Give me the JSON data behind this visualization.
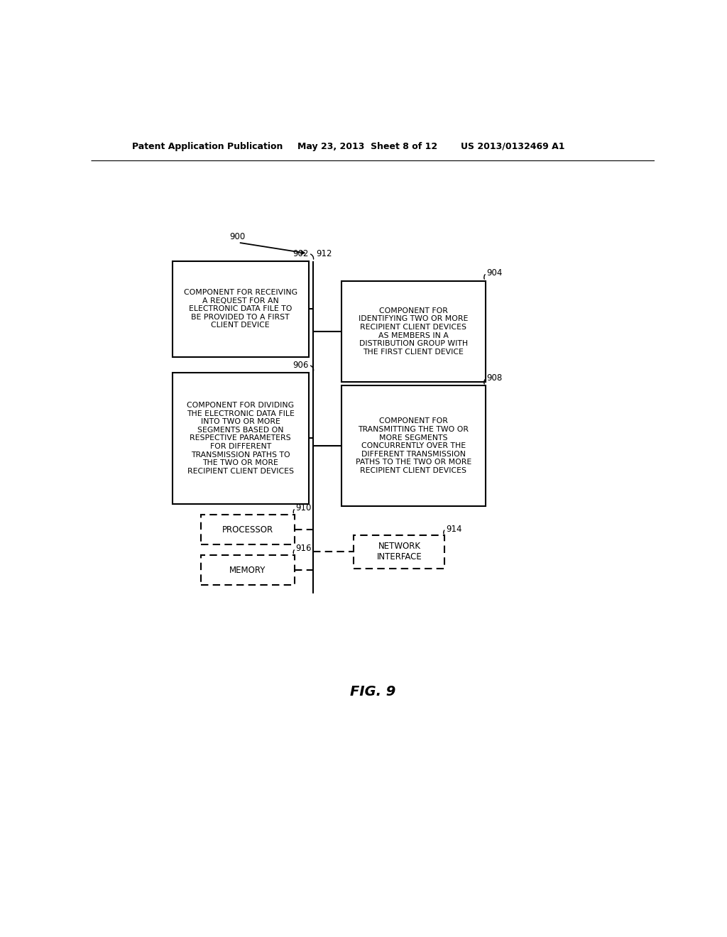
{
  "header_left": "Patent Application Publication",
  "header_mid": "May 23, 2013  Sheet 8 of 12",
  "header_right": "US 2013/0132469 A1",
  "fig_label": "FIG. 9",
  "bg_color": "#ffffff",
  "label_900": "900",
  "label_902": "902",
  "label_904": "904",
  "label_906": "906",
  "label_908": "908",
  "label_910": "910",
  "label_912": "912",
  "label_914": "914",
  "label_916": "916",
  "box902_text": "COMPONENT FOR RECEIVING\nA REQUEST FOR AN\nELECTRONIC DATA FILE TO\nBE PROVIDED TO A FIRST\nCLIENT DEVICE",
  "box904_text": "COMPONENT FOR\nIDENTIFYING TWO OR MORE\nRECIPIENT CLIENT DEVICES\nAS MEMBERS IN A\nDISTRIBUTION GROUP WITH\nTHE FIRST CLIENT DEVICE",
  "box906_text": "COMPONENT FOR DIVIDING\nTHE ELECTRONIC DATA FILE\nINTO TWO OR MORE\nSEGMENTS BASED ON\nRESPECTIVE PARAMETERS\nFOR DIFFERENT\nTRANSMISSION PATHS TO\nTHE TWO OR MORE\nRECIPIENT CLIENT DEVICES",
  "box908_text": "COMPONENT FOR\nTRANSMITTING THE TWO OR\nMORE SEGMENTS\nCONCURRENTLY OVER THE\nDIFFERENT TRANSMISSION\nPATHS TO THE TWO OR MORE\nRECIPIENT CLIENT DEVICES",
  "box910_text": "PROCESSOR",
  "box914_text": "NETWORK\nINTERFACE",
  "box916_text": "MEMORY"
}
